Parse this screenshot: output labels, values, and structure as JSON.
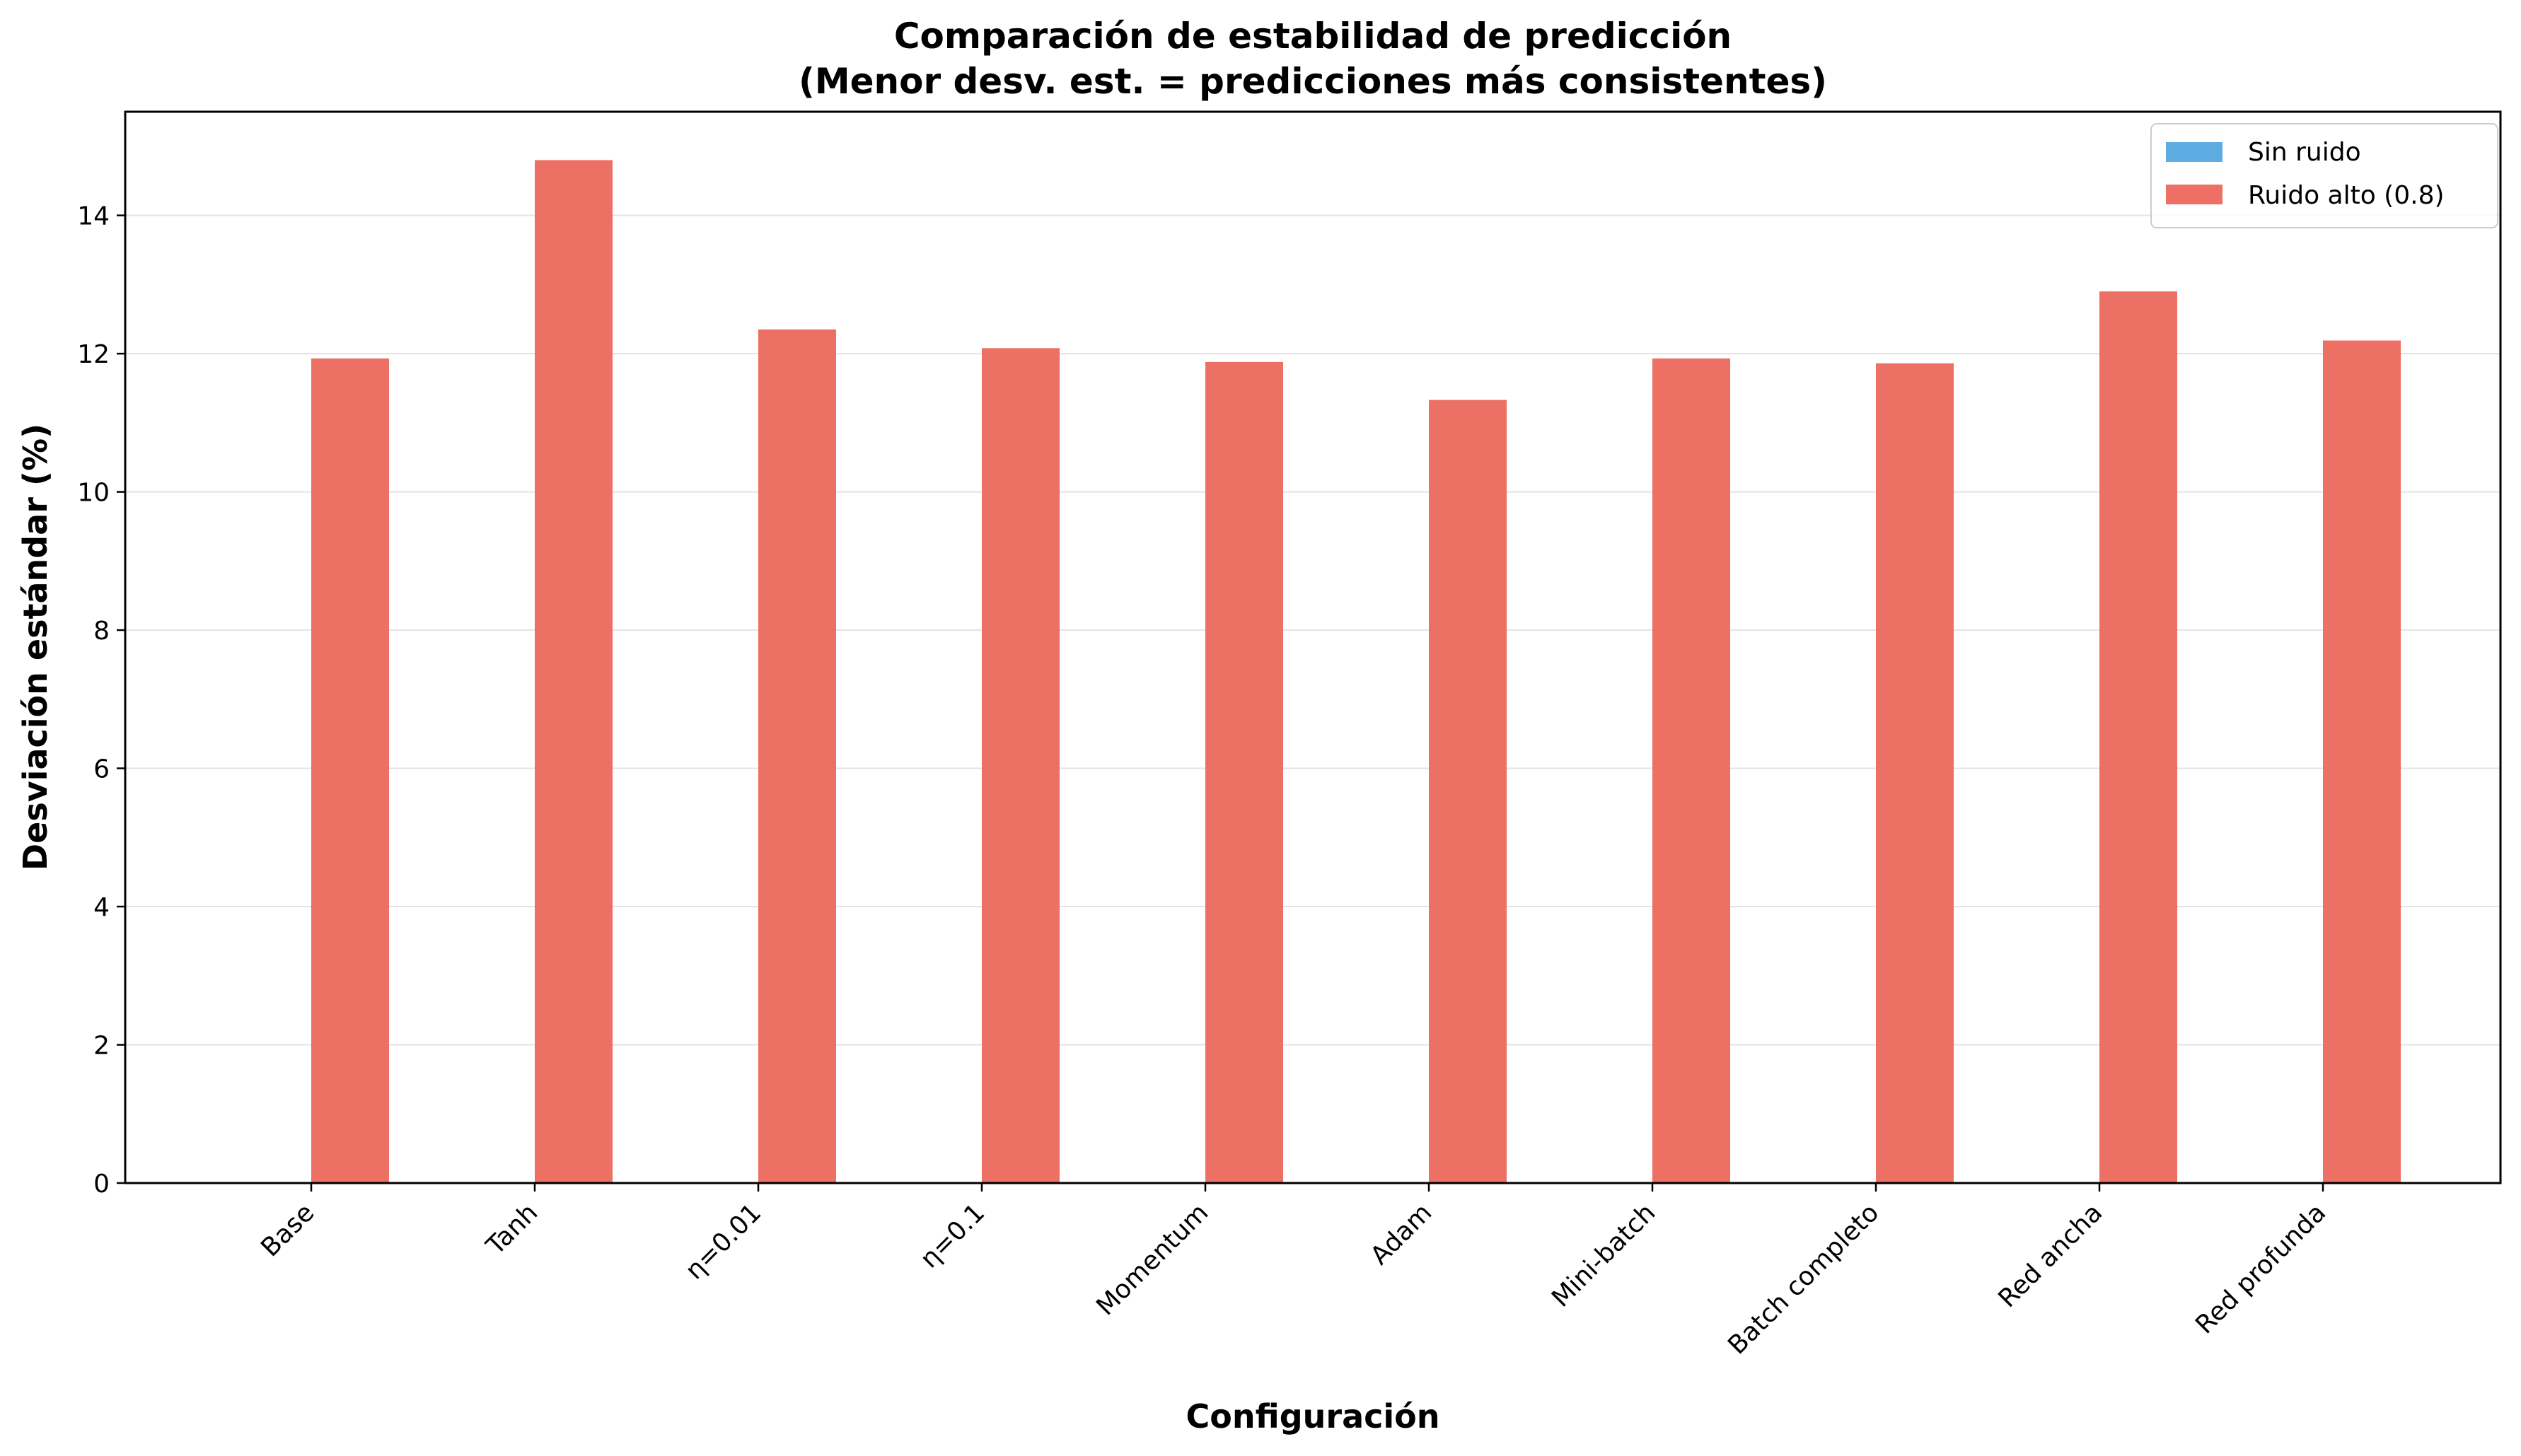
{
  "chart_data": {
    "type": "bar",
    "title": "Comparación de estabilidad de predicción",
    "subtitle": "(Menor desv. est. = predicciones más consistentes)",
    "xlabel": "Configuración",
    "ylabel": "Desviación estándar (%)",
    "ylim": [
      0,
      15.5
    ],
    "yticks": [
      "0",
      "2",
      "4",
      "6",
      "8",
      "10",
      "12",
      "14"
    ],
    "grid": "y",
    "legend_position": "top-right",
    "categories": [
      "Base",
      "Tanh",
      "η=0.01",
      "η=0.1",
      "Momentum",
      "Adam",
      "Mini-batch",
      "Batch completo",
      "Red ancha",
      "Red profunda"
    ],
    "series": [
      {
        "name": "Sin ruido",
        "color": "#5DADE2",
        "values": [
          0,
          0,
          0,
          0,
          0,
          0,
          0,
          0,
          0,
          0
        ]
      },
      {
        "name": "Ruido alto (0.8)",
        "color": "#EC7063",
        "values": [
          11.93,
          14.8,
          12.35,
          12.08,
          11.88,
          11.33,
          11.93,
          11.86,
          12.9,
          12.19
        ]
      }
    ]
  }
}
